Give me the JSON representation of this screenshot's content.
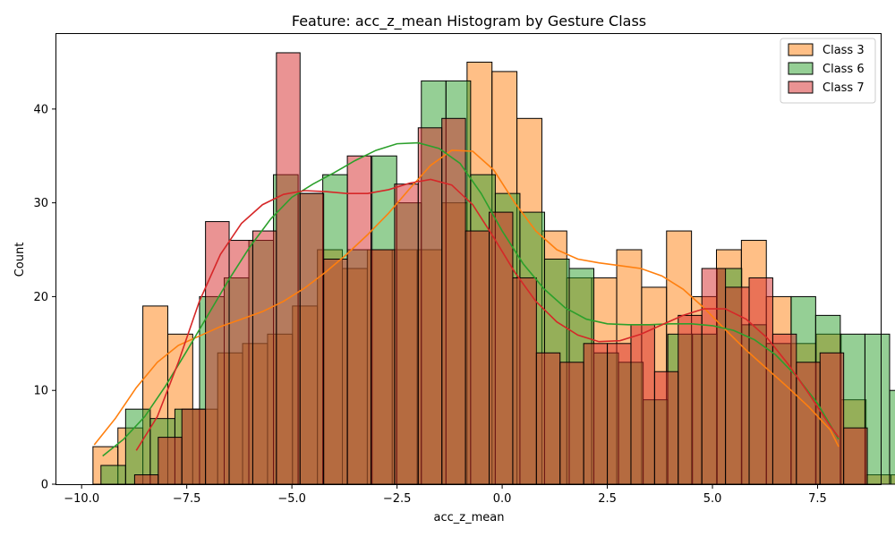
{
  "chart_data": {
    "type": "bar",
    "title": "Feature: acc_z_mean Histogram by Gesture Class",
    "xlabel": "acc_z_mean",
    "ylabel": "Count",
    "xlim": [
      -10.6,
      9.0
    ],
    "ylim": [
      0,
      48
    ],
    "xticks": [
      -10.0,
      -7.5,
      -5.0,
      -2.5,
      0.0,
      2.5,
      5.0,
      7.5
    ],
    "xtick_labels": [
      "−10.0",
      "−7.5",
      "−5.0",
      "−2.5",
      "0.0",
      "2.5",
      "5.0",
      "7.5"
    ],
    "yticks": [
      0,
      10,
      20,
      30,
      40
    ],
    "yticks_labels": [
      "0",
      "10",
      "20",
      "30",
      "40"
    ],
    "grid": false,
    "legend_position": "top-right",
    "series": [
      {
        "name": "Class 3",
        "color": "#ff7f0e",
        "x_start": -9.73,
        "bin_width": 0.593,
        "values": [
          4,
          6,
          19,
          16,
          8,
          14,
          15,
          16,
          19,
          25,
          23,
          25,
          25,
          25,
          30,
          45,
          44,
          39,
          27,
          22,
          22,
          25,
          21,
          27,
          20,
          25,
          26,
          20,
          15,
          16,
          9,
          1,
          1
        ],
        "kde": [
          [
            -9.7,
            4.2
          ],
          [
            -9.2,
            7.0
          ],
          [
            -8.7,
            10.3
          ],
          [
            -8.2,
            13.0
          ],
          [
            -7.7,
            14.8
          ],
          [
            -7.2,
            15.8
          ],
          [
            -6.7,
            16.8
          ],
          [
            -6.2,
            17.6
          ],
          [
            -5.7,
            18.4
          ],
          [
            -5.2,
            19.5
          ],
          [
            -4.7,
            20.9
          ],
          [
            -4.2,
            22.6
          ],
          [
            -3.7,
            24.5
          ],
          [
            -3.2,
            26.6
          ],
          [
            -2.7,
            28.9
          ],
          [
            -2.2,
            31.5
          ],
          [
            -1.7,
            34.0
          ],
          [
            -1.2,
            35.6
          ],
          [
            -0.7,
            35.5
          ],
          [
            -0.2,
            33.5
          ],
          [
            0.3,
            30.0
          ],
          [
            0.8,
            27.0
          ],
          [
            1.3,
            25.0
          ],
          [
            1.8,
            24.0
          ],
          [
            2.3,
            23.6
          ],
          [
            2.8,
            23.3
          ],
          [
            3.3,
            23.0
          ],
          [
            3.8,
            22.2
          ],
          [
            4.3,
            20.8
          ],
          [
            4.8,
            18.8
          ],
          [
            5.3,
            16.5
          ],
          [
            5.8,
            14.3
          ],
          [
            6.3,
            12.3
          ],
          [
            6.8,
            10.3
          ],
          [
            7.3,
            8.2
          ],
          [
            7.8,
            5.8
          ],
          [
            8.0,
            4.0
          ]
        ]
      },
      {
        "name": "Class 6",
        "color": "#2ca02c",
        "x_start": -9.54,
        "bin_width": 0.586,
        "values": [
          2,
          8,
          7,
          8,
          20,
          22,
          26,
          33,
          31,
          33,
          25,
          35,
          30,
          43,
          43,
          33,
          31,
          29,
          24,
          23,
          14,
          13,
          9,
          16,
          16,
          23,
          17,
          15,
          20,
          18,
          16,
          16,
          10,
          5
        ],
        "kde": [
          [
            -9.5,
            3.0
          ],
          [
            -9.0,
            4.8
          ],
          [
            -8.5,
            7.2
          ],
          [
            -8.0,
            10.5
          ],
          [
            -7.5,
            14.2
          ],
          [
            -7.0,
            18.0
          ],
          [
            -6.5,
            21.8
          ],
          [
            -6.0,
            25.3
          ],
          [
            -5.5,
            28.3
          ],
          [
            -5.0,
            30.6
          ],
          [
            -4.5,
            32.0
          ],
          [
            -4.0,
            33.2
          ],
          [
            -3.5,
            34.5
          ],
          [
            -3.0,
            35.6
          ],
          [
            -2.5,
            36.3
          ],
          [
            -2.0,
            36.4
          ],
          [
            -1.5,
            35.8
          ],
          [
            -1.0,
            34.2
          ],
          [
            -0.5,
            31.0
          ],
          [
            0.0,
            27.0
          ],
          [
            0.5,
            23.5
          ],
          [
            1.0,
            20.8
          ],
          [
            1.5,
            18.8
          ],
          [
            2.0,
            17.6
          ],
          [
            2.5,
            17.1
          ],
          [
            3.0,
            17.0
          ],
          [
            3.5,
            17.0
          ],
          [
            4.0,
            17.1
          ],
          [
            4.5,
            17.1
          ],
          [
            5.0,
            16.9
          ],
          [
            5.5,
            16.4
          ],
          [
            6.0,
            15.4
          ],
          [
            6.5,
            13.8
          ],
          [
            7.0,
            11.5
          ],
          [
            7.5,
            8.6
          ],
          [
            8.0,
            4.8
          ]
        ]
      },
      {
        "name": "Class 7",
        "color": "#d62728",
        "x_start": -8.74,
        "bin_width": 0.562,
        "values": [
          1,
          5,
          8,
          28,
          26,
          27,
          46,
          31,
          24,
          35,
          25,
          32,
          38,
          39,
          27,
          29,
          22,
          14,
          13,
          15,
          15,
          17,
          12,
          18,
          23,
          21,
          22,
          16,
          13,
          14,
          6
        ],
        "kde": [
          [
            -8.7,
            3.6
          ],
          [
            -8.2,
            7.2
          ],
          [
            -7.7,
            13.0
          ],
          [
            -7.2,
            19.5
          ],
          [
            -6.7,
            24.5
          ],
          [
            -6.2,
            27.8
          ],
          [
            -5.7,
            29.8
          ],
          [
            -5.2,
            30.9
          ],
          [
            -4.7,
            31.3
          ],
          [
            -4.2,
            31.2
          ],
          [
            -3.7,
            31.0
          ],
          [
            -3.2,
            31.0
          ],
          [
            -2.7,
            31.4
          ],
          [
            -2.2,
            32.1
          ],
          [
            -1.7,
            32.5
          ],
          [
            -1.2,
            31.9
          ],
          [
            -0.7,
            29.8
          ],
          [
            -0.2,
            26.3
          ],
          [
            0.3,
            22.6
          ],
          [
            0.8,
            19.5
          ],
          [
            1.3,
            17.3
          ],
          [
            1.8,
            15.9
          ],
          [
            2.3,
            15.2
          ],
          [
            2.8,
            15.3
          ],
          [
            3.3,
            16.0
          ],
          [
            3.8,
            17.0
          ],
          [
            4.3,
            18.0
          ],
          [
            4.8,
            18.7
          ],
          [
            5.3,
            18.7
          ],
          [
            5.8,
            17.6
          ],
          [
            6.3,
            15.6
          ],
          [
            6.8,
            12.8
          ],
          [
            7.3,
            9.6
          ],
          [
            7.8,
            6.2
          ],
          [
            8.0,
            5.0
          ]
        ]
      }
    ]
  }
}
